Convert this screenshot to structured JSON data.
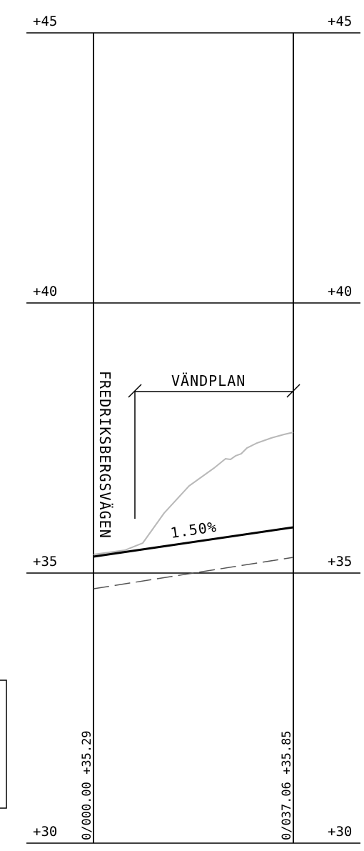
{
  "levels": [
    "+45",
    "+40",
    "+35",
    "+30"
  ],
  "road_name": "FREDRIKSBERGSVÄGEN",
  "section_label": "VÄNDPLAN",
  "grade_label": "1.50%",
  "stations": {
    "start": "0/000.00 +35.29",
    "end": "0/037.06 +35.85"
  },
  "colors": {
    "frame": "#000000",
    "existing_ground": "#b8b8b8",
    "design_line": "#000000",
    "dashed_line": "#555555"
  }
}
